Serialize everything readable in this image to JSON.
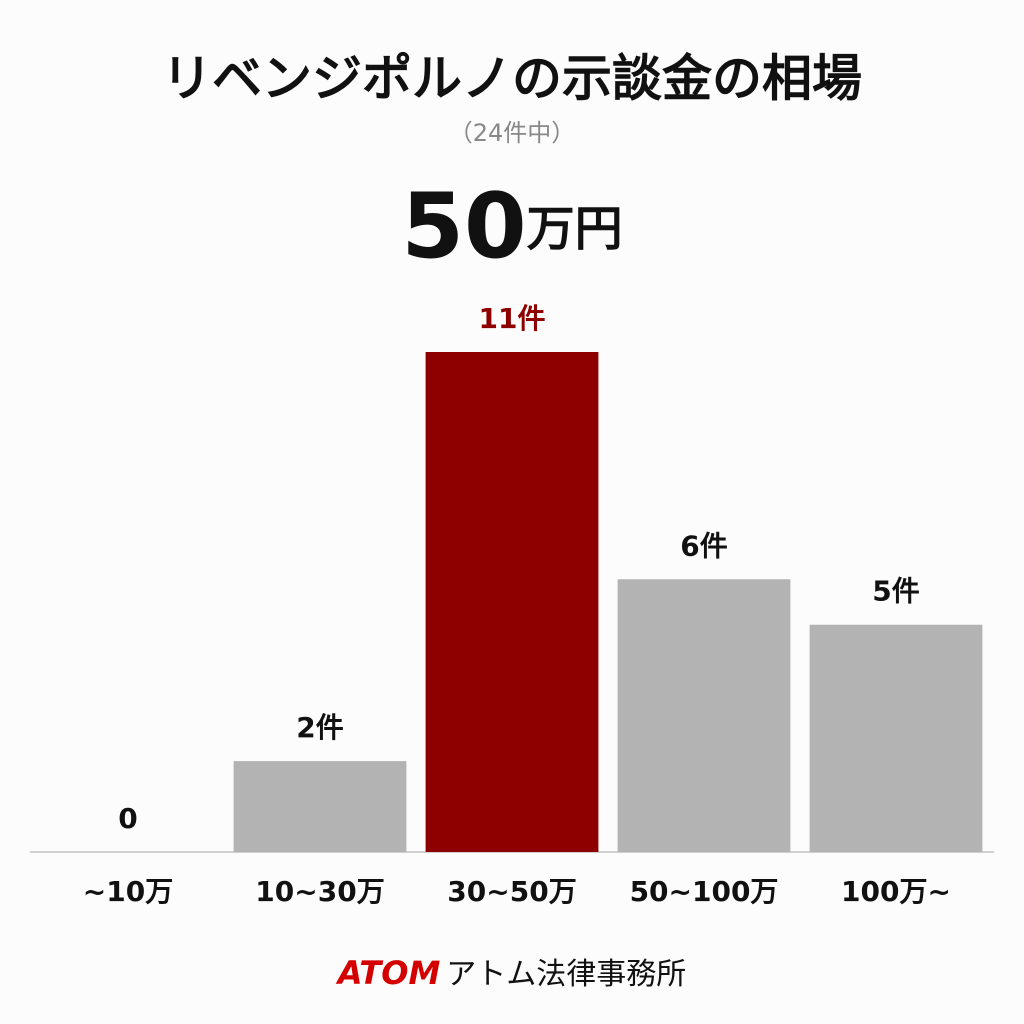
{
  "chart_data": {
    "type": "bar",
    "title": "リベンジポルノの示談金の相場",
    "subtitle": "（24件中）",
    "headline": {
      "number": "50",
      "unit": "万円"
    },
    "categories": [
      "~10万",
      "10~30万",
      "30~50万",
      "50~100万",
      "100万~"
    ],
    "values": [
      0,
      2,
      11,
      6,
      5
    ],
    "value_labels": [
      "0",
      "2件",
      "11件",
      "6件",
      "5件"
    ],
    "colors": [
      "#b3b3b3",
      "#b3b3b3",
      "#8e0000",
      "#b3b3b3",
      "#b3b3b3"
    ],
    "label_colors": [
      "#111111",
      "#111111",
      "#8e0000",
      "#111111",
      "#111111"
    ],
    "footer": {
      "brand": "ATOM",
      "name": "アトム法律事務所"
    }
  }
}
